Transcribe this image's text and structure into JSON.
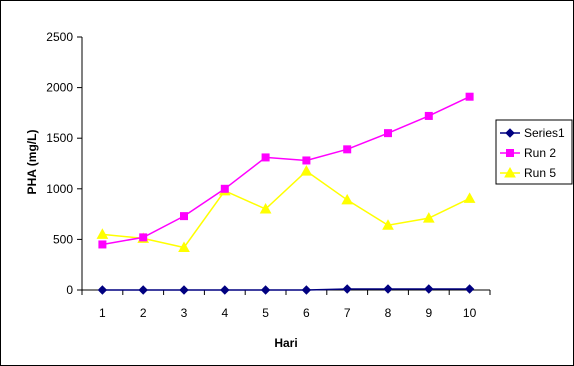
{
  "chart_data": {
    "type": "line",
    "title": "",
    "xlabel": "Hari",
    "ylabel": "PHA (mg/L)",
    "categories": [
      "1",
      "2",
      "3",
      "4",
      "5",
      "6",
      "7",
      "8",
      "9",
      "10"
    ],
    "ylim": [
      0,
      2500
    ],
    "yticks": [
      "0",
      "500",
      "1000",
      "1500",
      "2000",
      "2500"
    ],
    "grid": false,
    "legend_position": "right",
    "series": [
      {
        "name": "Series1",
        "color": "#000080",
        "marker": "diamond",
        "values": [
          0,
          0,
          0,
          0,
          0,
          0,
          10,
          10,
          10,
          10
        ]
      },
      {
        "name": "Run 2",
        "color": "#ff00ff",
        "marker": "square",
        "values": [
          450,
          520,
          730,
          1000,
          1310,
          1280,
          1390,
          1550,
          1720,
          1910
        ]
      },
      {
        "name": "Run 5",
        "color": "#ffff00",
        "marker": "triangle",
        "values": [
          550,
          510,
          420,
          980,
          800,
          1175,
          890,
          640,
          710,
          905
        ]
      }
    ]
  }
}
